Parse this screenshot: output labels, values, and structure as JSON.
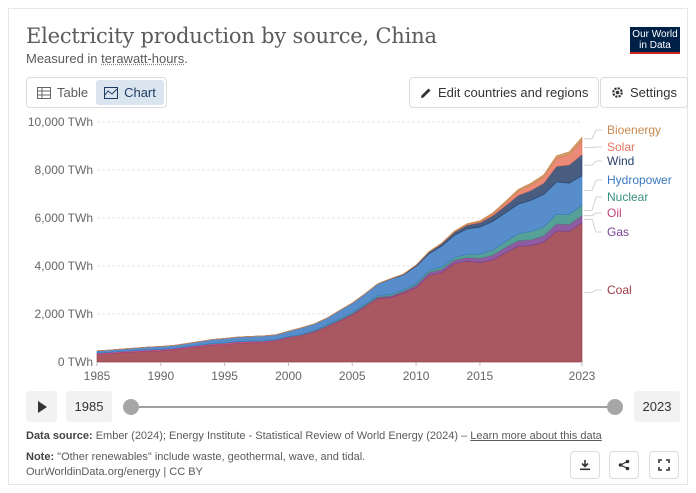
{
  "header": {
    "title": "Electricity production by source, China",
    "subtitle_prefix": "Measured in ",
    "subtitle_unit": "terawatt-hours",
    "subtitle_suffix": "."
  },
  "logo": {
    "line1": "Our World",
    "line2": "in Data"
  },
  "tabs": [
    {
      "label": "Table",
      "icon": "table-icon"
    },
    {
      "label": "Chart",
      "icon": "chart-icon",
      "active": true
    }
  ],
  "toolbar": {
    "edit_label": "Edit countries and regions",
    "settings_label": "Settings"
  },
  "timeline": {
    "start_year": "1985",
    "end_year": "2023"
  },
  "footer": {
    "source_label": "Data source:",
    "source_text": " Ember (2024); Energy Institute - Statistical Review of World Energy (2024) – ",
    "source_link": "Learn more about this data",
    "note_label": "Note:",
    "note_text": " \"Other renewables\" include waste, geothermal, wave, and tidal.",
    "credit": "OurWorldinData.org/energy | CC BY"
  },
  "chart_data": {
    "type": "area",
    "stacked": true,
    "y_tick_labels": [
      "0 TWh",
      "2,000 TWh",
      "4,000 TWh",
      "6,000 TWh",
      "8,000 TWh",
      "10,000 TWh"
    ],
    "y_ticks": [
      0,
      2000,
      4000,
      6000,
      8000,
      10000
    ],
    "ylim": [
      0,
      10000
    ],
    "x_ticks": [
      1985,
      1990,
      1995,
      2000,
      2005,
      2010,
      2015,
      2023
    ],
    "xlim": [
      1985,
      2023
    ],
    "grid": true,
    "x": [
      1985,
      1986,
      1987,
      1988,
      1989,
      1990,
      1991,
      1992,
      1993,
      1994,
      1995,
      1996,
      1997,
      1998,
      1999,
      2000,
      2001,
      2002,
      2003,
      2004,
      2005,
      2006,
      2007,
      2008,
      2009,
      2010,
      2011,
      2012,
      2013,
      2014,
      2015,
      2016,
      2017,
      2018,
      2019,
      2020,
      2021,
      2022,
      2023
    ],
    "series": [
      {
        "name": "Coal",
        "color": "#9a3b45",
        "values": [
          320,
          350,
          390,
          420,
          450,
          470,
          510,
          580,
          640,
          700,
          730,
          780,
          800,
          820,
          880,
          1010,
          1100,
          1240,
          1460,
          1700,
          1960,
          2300,
          2650,
          2690,
          2870,
          3100,
          3600,
          3730,
          4100,
          4200,
          4150,
          4250,
          4550,
          4820,
          4850,
          5000,
          5450,
          5450,
          5800
        ]
      },
      {
        "name": "Gas",
        "color": "#7a3f93",
        "values": [
          5,
          5,
          5,
          5,
          5,
          5,
          5,
          5,
          5,
          5,
          5,
          5,
          5,
          5,
          5,
          5,
          10,
          10,
          15,
          20,
          25,
          30,
          40,
          50,
          60,
          80,
          110,
          120,
          130,
          140,
          160,
          190,
          210,
          220,
          230,
          250,
          290,
          270,
          290
        ]
      },
      {
        "name": "Oil",
        "color": "#c1447c",
        "values": [
          50,
          50,
          50,
          50,
          50,
          50,
          50,
          50,
          50,
          50,
          50,
          50,
          50,
          40,
          30,
          30,
          20,
          20,
          20,
          20,
          20,
          20,
          15,
          10,
          10,
          10,
          10,
          10,
          10,
          10,
          10,
          10,
          10,
          10,
          10,
          10,
          10,
          10,
          10
        ]
      },
      {
        "name": "Nuclear",
        "color": "#3a8f86",
        "values": [
          0,
          0,
          0,
          0,
          0,
          0,
          0,
          1,
          2,
          14,
          13,
          14,
          14,
          14,
          15,
          17,
          18,
          25,
          43,
          50,
          53,
          55,
          62,
          68,
          70,
          74,
          87,
          97,
          112,
          133,
          171,
          213,
          248,
          295,
          348,
          366,
          408,
          418,
          435
        ]
      },
      {
        "name": "Hydropower",
        "color": "#3b79c2",
        "values": [
          92,
          94,
          100,
          109,
          118,
          127,
          125,
          130,
          151,
          168,
          187,
          188,
          196,
          208,
          204,
          222,
          278,
          288,
          284,
          353,
          397,
          436,
          485,
          637,
          615,
          722,
          699,
          872,
          921,
          1064,
          1130,
          1193,
          1194,
          1232,
          1300,
          1355,
          1340,
          1303,
          1226
        ]
      },
      {
        "name": "Wind",
        "color": "#28416a",
        "values": [
          0,
          0,
          0,
          0,
          0,
          0,
          0,
          0,
          0,
          0,
          0,
          0,
          0,
          1,
          1,
          1,
          1,
          1,
          1,
          2,
          2,
          4,
          6,
          13,
          28,
          45,
          70,
          96,
          141,
          156,
          186,
          241,
          295,
          366,
          406,
          467,
          656,
          762,
          886
        ]
      },
      {
        "name": "Solar",
        "color": "#e6755f",
        "values": [
          0,
          0,
          0,
          0,
          0,
          0,
          0,
          0,
          0,
          0,
          0,
          0,
          0,
          0,
          0,
          0,
          0,
          0,
          0,
          0,
          0,
          0,
          0,
          0,
          0,
          1,
          3,
          6,
          15,
          29,
          45,
          67,
          118,
          177,
          225,
          261,
          327,
          427,
          584
        ]
      },
      {
        "name": "Bioenergy",
        "color": "#c98a4f",
        "values": [
          0,
          0,
          0,
          0,
          0,
          0,
          0,
          0,
          0,
          0,
          0,
          0,
          0,
          0,
          0,
          2,
          3,
          3,
          4,
          5,
          5,
          6,
          8,
          10,
          12,
          15,
          22,
          26,
          28,
          32,
          37,
          47,
          61,
          72,
          80,
          90,
          110,
          120,
          134
        ]
      }
    ]
  }
}
